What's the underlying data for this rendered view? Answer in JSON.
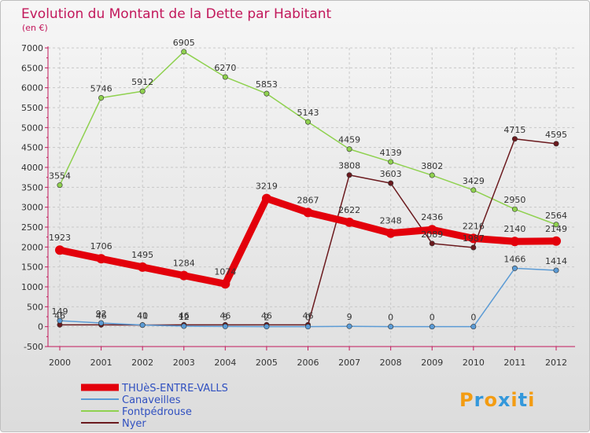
{
  "chart_data": {
    "type": "line",
    "title": "Evolution du Montant de la Dette par Habitant",
    "subtitle": "(en €)",
    "xlabel": "",
    "ylabel": "",
    "categories": [
      "2000",
      "2001",
      "2002",
      "2003",
      "2004",
      "2005",
      "2006",
      "2007",
      "2008",
      "2009",
      "2010",
      "2011",
      "2012"
    ],
    "ylim": [
      -500,
      7000
    ],
    "yticks": [
      -500,
      0,
      500,
      1000,
      1500,
      2000,
      2500,
      3000,
      3500,
      4000,
      4500,
      5000,
      5500,
      6000,
      6500,
      7000
    ],
    "grid": true,
    "series": [
      {
        "name": "Fontpédrouse",
        "color": "#8fd14f",
        "values": [
          3554,
          5746,
          5912,
          6905,
          6270,
          5853,
          5143,
          4459,
          4139,
          3802,
          3429,
          2950,
          2564
        ]
      },
      {
        "name": "Nyer",
        "color": "#6b1a1e",
        "values": [
          46,
          46,
          41,
          46,
          46,
          46,
          46,
          3808,
          3603,
          2089,
          1987,
          4715,
          4595
        ],
        "labels": [
          "46",
          "46",
          "41",
          "46",
          "46",
          "46",
          "46",
          "3808",
          "3603",
          "2089",
          "1987",
          "4715",
          "4595"
        ]
      },
      {
        "name": "Canaveilles",
        "color": "#5b9bd5",
        "values": [
          149,
          92,
          40,
          12,
          5,
          2,
          0,
          9,
          0,
          0,
          0,
          1466,
          1414
        ],
        "labels": [
          "149",
          "92",
          "40",
          "12",
          "5",
          "2",
          "0",
          "9",
          "0",
          "0",
          "0",
          "1466",
          "1414"
        ]
      },
      {
        "name": "THUèS-ENTRE-VALLS",
        "color": "#e3000b",
        "values": [
          1923,
          1706,
          1495,
          1284,
          1074,
          3219,
          2867,
          2622,
          2348,
          2436,
          2216,
          2140,
          2149
        ]
      }
    ]
  },
  "legend": {
    "items": [
      {
        "name": "THUèS-ENTRE-VALLS",
        "color": "#e3000b"
      },
      {
        "name": "Canaveilles",
        "color": "#5b9bd5"
      },
      {
        "name": "Fontpédrouse",
        "color": "#8fd14f"
      },
      {
        "name": "Nyer",
        "color": "#6b1a1e"
      }
    ]
  },
  "logo": {
    "text": "Proxiti",
    "letters": [
      "P",
      "r",
      "o",
      "x",
      "i",
      "t",
      "i"
    ],
    "colors": [
      "#f39c12",
      "#3498db",
      "#f39c12",
      "#3498db",
      "#f39c12",
      "#3498db",
      "#f39c12"
    ]
  }
}
